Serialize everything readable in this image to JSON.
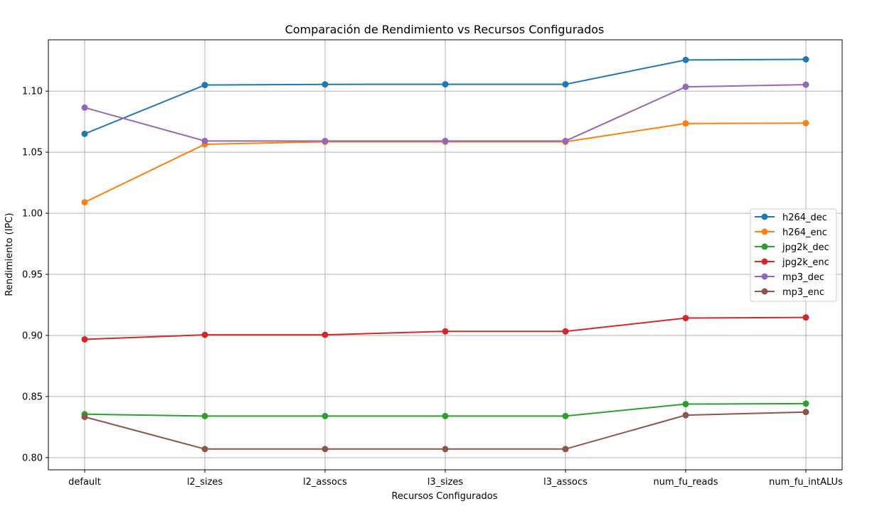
{
  "chart_data": {
    "type": "line",
    "title": "Comparación de Rendimiento vs Recursos Configurados",
    "xlabel": "Recursos Configurados",
    "ylabel": "Rendimiento (IPC)",
    "categories": [
      "default",
      "l2_sizes",
      "l2_assocs",
      "l3_sizes",
      "l3_assocs",
      "num_fu_reads",
      "num_fu_intALUs"
    ],
    "ylim": [
      0.79,
      1.142
    ],
    "yticks": [
      "0.80",
      "0.85",
      "0.90",
      "0.95",
      "1.00",
      "1.05",
      "1.10"
    ],
    "grid": true,
    "legend_position": "center-right",
    "series": [
      {
        "name": "h264_dec",
        "color": "#1f77b4",
        "values": [
          1.065,
          1.105,
          1.1055,
          1.1056,
          1.1056,
          1.1255,
          1.126
        ]
      },
      {
        "name": "h264_enc",
        "color": "#ff7f0e",
        "values": [
          1.009,
          1.0565,
          1.0585,
          1.0585,
          1.0585,
          1.0735,
          1.0738
        ]
      },
      {
        "name": "jpg2k_dec",
        "color": "#2ca02c",
        "values": [
          0.8355,
          0.834,
          0.834,
          0.834,
          0.834,
          0.8438,
          0.8442
        ]
      },
      {
        "name": "jpg2k_enc",
        "color": "#d62728",
        "values": [
          0.8968,
          0.9005,
          0.9005,
          0.9033,
          0.9033,
          0.9142,
          0.9147
        ]
      },
      {
        "name": "mp3_dec",
        "color": "#9467bd",
        "values": [
          1.0865,
          1.0592,
          1.0592,
          1.0592,
          1.0592,
          1.1035,
          1.1053
        ]
      },
      {
        "name": "mp3_enc",
        "color": "#8c564b",
        "values": [
          0.8333,
          0.807,
          0.807,
          0.807,
          0.807,
          0.8347,
          0.8373
        ]
      }
    ]
  }
}
